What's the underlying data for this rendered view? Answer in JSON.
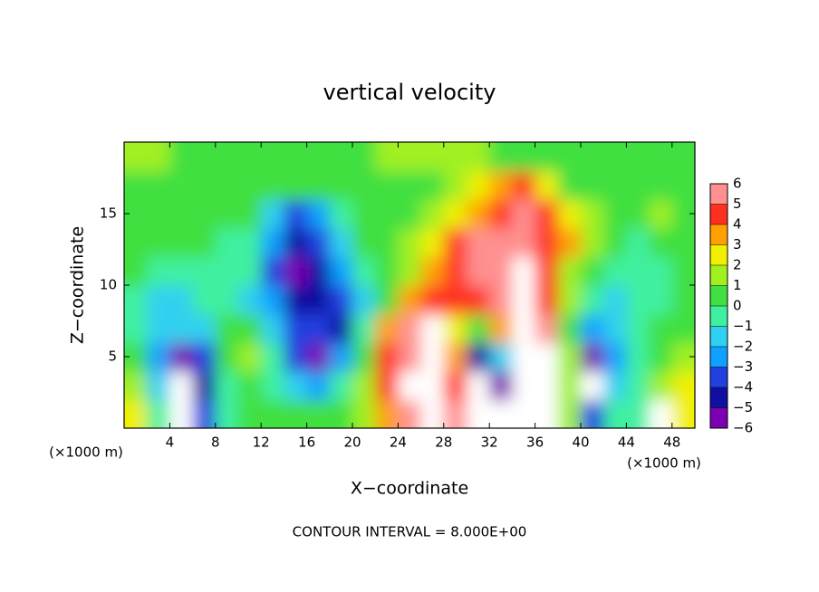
{
  "chart_data": {
    "type": "heatmap",
    "title": "vertical velocity",
    "x_label": "X−coordinate",
    "y_label": "Z−coordinate",
    "x_unit": "(×1000 m)",
    "y_unit": "(×1000 m)",
    "note": "CONTOUR INTERVAL = 8.000E+00",
    "xlim": [
      0,
      50
    ],
    "ylim": [
      0,
      20
    ],
    "xticks": [
      4,
      8,
      12,
      16,
      20,
      24,
      28,
      32,
      36,
      40,
      44,
      48
    ],
    "yticks": [
      5,
      10,
      15
    ],
    "clim": [
      -6,
      6
    ],
    "cticks": [
      {
        "value": -6,
        "label": "−6"
      },
      {
        "value": -5,
        "label": "−5"
      },
      {
        "value": -4,
        "label": "−4"
      },
      {
        "value": -3,
        "label": "−3"
      },
      {
        "value": -2,
        "label": "−2"
      },
      {
        "value": -1,
        "label": "−1"
      },
      0,
      1,
      2,
      3,
      4,
      5,
      6
    ],
    "colors": [
      "#7a00b0",
      "#1010a0",
      "#2040e0",
      "#10a0ff",
      "#30d0f0",
      "#40f0a0",
      "#40e040",
      "#a0f020",
      "#f0f000",
      "#ffa000",
      "#ff3020",
      "#ff9090"
    ],
    "out_of_range_color": "#ffffff",
    "x": [
      1,
      3,
      5,
      7,
      9,
      11,
      13,
      15,
      17,
      19,
      21,
      23,
      25,
      27,
      29,
      31,
      33,
      35,
      37,
      39,
      41,
      43,
      45,
      47,
      49
    ],
    "y": [
      1,
      3,
      5,
      7,
      9,
      11,
      13,
      15,
      17,
      19
    ],
    "z": [
      [
        2,
        -1,
        -7,
        -4,
        -1,
        0,
        0.5,
        0,
        0,
        0.5,
        1,
        3,
        6,
        8,
        5,
        -7,
        -8,
        8,
        7,
        1,
        -4,
        -1,
        -1,
        7,
        2
      ],
      [
        1,
        -2,
        -8,
        -5,
        -1,
        0,
        -1,
        -2,
        -3,
        -1,
        1,
        4,
        7,
        9,
        4,
        -8,
        -6,
        10,
        8,
        1,
        -7,
        -2,
        -1,
        1,
        2
      ],
      [
        0,
        -3,
        -6,
        -4,
        0,
        1,
        -1,
        -4,
        -6,
        -3,
        0,
        4,
        6,
        9,
        3,
        -5,
        -2,
        10,
        8,
        1,
        -6,
        -3,
        -1,
        0,
        1
      ],
      [
        -1,
        -2,
        -2,
        -2,
        0,
        0,
        -2,
        -4,
        -4,
        -5,
        -1,
        3,
        5,
        8,
        2,
        0,
        3,
        10,
        6,
        0,
        -3,
        -2,
        -1,
        0,
        0
      ],
      [
        -1,
        -2,
        -2,
        -1,
        -1,
        -2,
        -3,
        -5,
        -5,
        -4,
        -2,
        0,
        3,
        4,
        4,
        4,
        5,
        7,
        4,
        1,
        -1,
        -2,
        -1,
        -1,
        0
      ],
      [
        0,
        -1,
        -1,
        -1,
        -1,
        -1,
        -4,
        -6,
        -5,
        -3,
        -1,
        0,
        1,
        3,
        4,
        5,
        6,
        7,
        4,
        1,
        0,
        -1,
        -1,
        -1,
        0
      ],
      [
        0,
        0,
        0,
        0,
        -1,
        -1,
        -3,
        -5,
        -4,
        -2,
        0,
        0,
        1,
        2,
        4,
        5,
        5,
        5,
        4,
        3,
        1,
        0,
        -1,
        0,
        0
      ],
      [
        0,
        0,
        0,
        0,
        0,
        0,
        -2,
        -4,
        -3,
        -1,
        0,
        0,
        0,
        1,
        2,
        3,
        4,
        5,
        4,
        2,
        1,
        0,
        0,
        1,
        0
      ],
      [
        0,
        0,
        0,
        0,
        0,
        0,
        0,
        0,
        0,
        0,
        0,
        0,
        0,
        0,
        1,
        2,
        3,
        4,
        2,
        0,
        0,
        0,
        0,
        0,
        0
      ],
      [
        1,
        1,
        0.5,
        0.5,
        0.5,
        0.5,
        0.5,
        0.5,
        0.5,
        0.5,
        0.5,
        1,
        1,
        1,
        1,
        1,
        0.5,
        0.5,
        0.5,
        0.5,
        0.5,
        0.5,
        0.5,
        0.5,
        0.5
      ]
    ]
  }
}
